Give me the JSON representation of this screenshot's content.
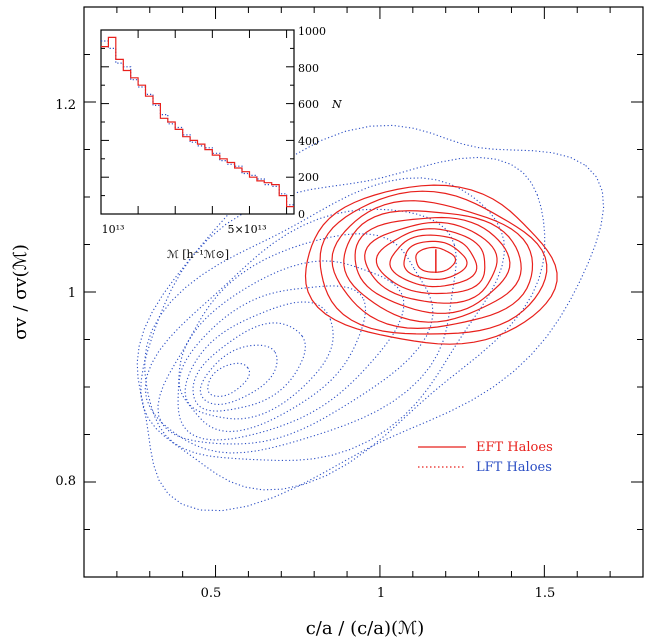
{
  "chart_data": [
    {
      "type": "contour",
      "xlabel": "c/a / (c/a)(ℳ)",
      "ylabel": "σv / σv(ℳ)",
      "xlim": [
        0.1,
        1.8
      ],
      "ylim": [
        0.7,
        1.3
      ],
      "x_ticks": [
        "0.5",
        "1",
        "1.5"
      ],
      "y_ticks": [
        "0.8",
        "1",
        "1.2"
      ],
      "grid": false,
      "legend_position": "lower-right",
      "series": [
        {
          "name": "EFT Haloes",
          "color": "#e8201c",
          "line_style": "solid",
          "center": [
            1.17,
            1.035
          ],
          "level_radii": [
            [
              0.38,
              0.083
            ],
            [
              0.345,
              0.075
            ],
            [
              0.305,
              0.066
            ],
            [
              0.27,
              0.058
            ],
            [
              0.235,
              0.05
            ],
            [
              0.2,
              0.042
            ],
            [
              0.165,
              0.034
            ],
            [
              0.13,
              0.027
            ],
            [
              0.095,
              0.02
            ],
            [
              0.06,
              0.013
            ]
          ]
        },
        {
          "name": "LFT Haloes",
          "color": "#2b4ec4",
          "line_style": "dotted",
          "center": [
            0.5,
            0.9
          ],
          "level_extent_x": [
            0.32,
            1.35
          ],
          "level_extent_y": [
            0.78,
            1.2
          ]
        }
      ]
    },
    {
      "type": "step",
      "position": "inset-top-left",
      "xlabel": "ℳ [h⁻¹ℳ⊙]",
      "ylabel": "N",
      "x_ticks": [
        "10¹³",
        "5×10¹³"
      ],
      "y_ticks": [
        "0",
        "200",
        "400",
        "600",
        "800",
        "1000"
      ],
      "ylim": [
        0,
        1000
      ],
      "x_range_units": "10^13 h^-1 M_sun",
      "xlim": [
        1.0,
        6.2
      ],
      "series": [
        {
          "name": "EFT Haloes",
          "color": "#e8201c",
          "line_style": "solid",
          "bin_edges": [
            1.0,
            1.2,
            1.4,
            1.6,
            1.8,
            2.0,
            2.2,
            2.4,
            2.6,
            2.8,
            3.0,
            3.2,
            3.4,
            3.6,
            3.8,
            4.0,
            4.2,
            4.4,
            4.6,
            4.8,
            5.0,
            5.2,
            5.4,
            5.6,
            5.8,
            6.0,
            6.2
          ],
          "values": [
            910,
            960,
            840,
            780,
            740,
            700,
            640,
            600,
            520,
            500,
            460,
            420,
            400,
            380,
            350,
            320,
            300,
            280,
            250,
            230,
            200,
            180,
            170,
            160,
            100,
            40
          ]
        },
        {
          "name": "LFT Haloes",
          "color": "#2b4ec4",
          "line_style": "dotted",
          "bin_edges": [
            1.0,
            1.2,
            1.4,
            1.6,
            1.8,
            2.0,
            2.2,
            2.4,
            2.6,
            2.8,
            3.0,
            3.2,
            3.4,
            3.6,
            3.8,
            4.0,
            4.2,
            4.4,
            4.6,
            4.8,
            5.0,
            5.2,
            5.4,
            5.6,
            5.8,
            6.0,
            6.2
          ],
          "values": [
            940,
            900,
            820,
            800,
            730,
            690,
            650,
            590,
            540,
            490,
            470,
            430,
            390,
            370,
            360,
            330,
            290,
            270,
            260,
            220,
            210,
            190,
            160,
            150,
            110,
            50
          ]
        }
      ]
    }
  ]
}
